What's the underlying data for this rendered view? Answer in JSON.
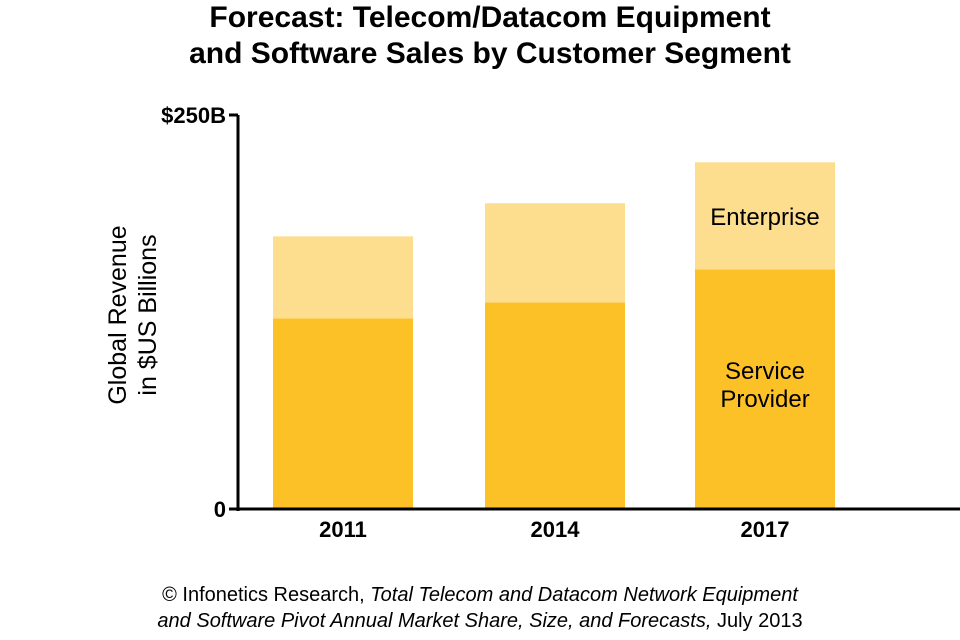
{
  "chart_data": {
    "type": "bar",
    "stacked": true,
    "title_line1": "Forecast: Telecom/Datacom Equipment",
    "title_line2": "and Software Sales by Customer Segment",
    "ylabel_line1": "Global Revenue",
    "ylabel_line2": "in $US Billions",
    "xlabel": "",
    "ylim": [
      0,
      250
    ],
    "yticks": [
      {
        "value": 0,
        "label": "0"
      },
      {
        "value": 250,
        "label": "$250B"
      }
    ],
    "grid": false,
    "categories": [
      "2011",
      "2014",
      "2017"
    ],
    "series": [
      {
        "name": "Service Provider",
        "values": [
          121,
          131,
          152
        ],
        "color": "#FDC128"
      },
      {
        "name": "Enterprise",
        "values": [
          52,
          63,
          68
        ],
        "color": "#FDDE8E"
      }
    ],
    "in_chart_labels": {
      "enterprise": "Enterprise",
      "service_provider_line1": "Service",
      "service_provider_line2": "Provider"
    }
  },
  "footer": {
    "prefix": "© Infonetics Research, ",
    "report_line1": "Total Telecom and Datacom Network Equipment",
    "report_line2": "and Software Pivot Annual Market Share, Size, and Forecasts,",
    "date": " July 2013"
  }
}
